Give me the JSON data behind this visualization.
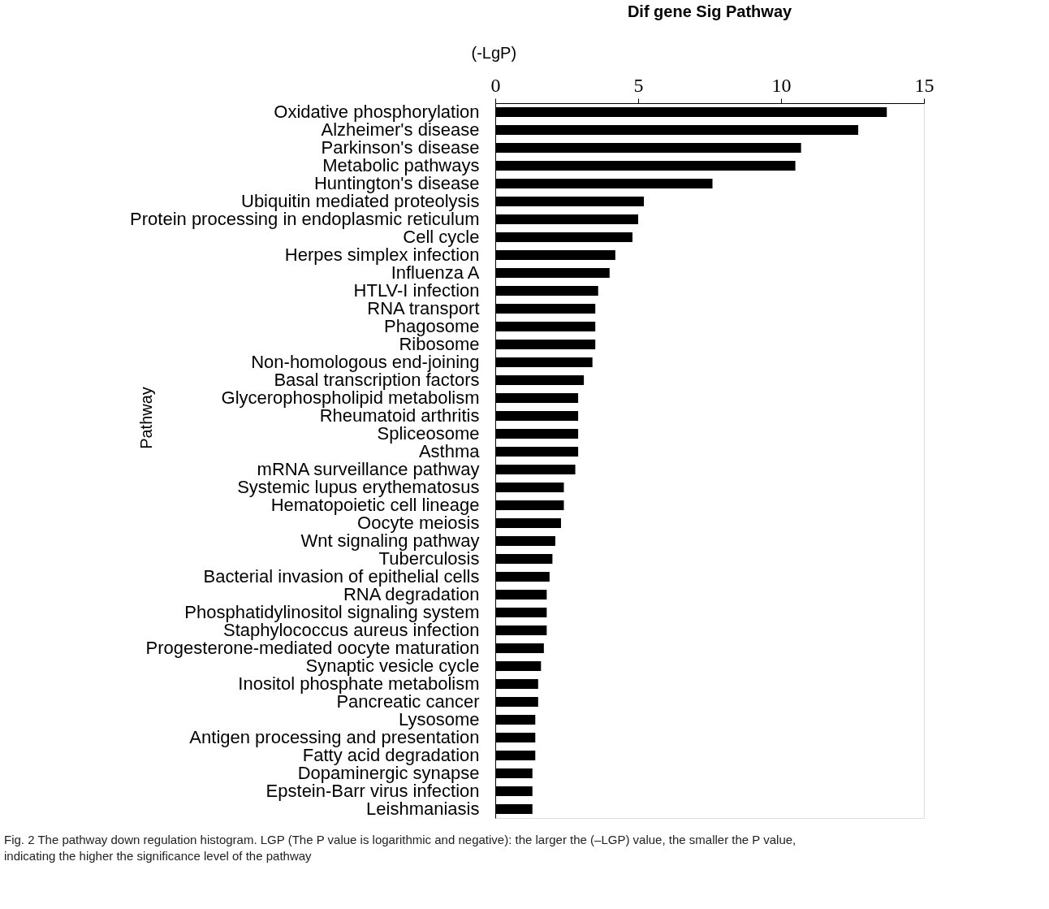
{
  "chart_data": {
    "type": "bar",
    "orientation": "horizontal",
    "title": "Dif gene Sig Pathway",
    "xlabel": "(-LgP)",
    "ylabel": "Pathway",
    "categories": [
      "Oxidative phosphorylation",
      "Alzheimer's disease",
      "Parkinson's disease",
      "Metabolic pathways",
      "Huntington's disease",
      "Ubiquitin mediated proteolysis",
      "Protein processing in endoplasmic reticulum",
      "Cell cycle",
      "Herpes simplex infection",
      "Influenza A",
      "HTLV-I infection",
      "RNA transport",
      "Phagosome",
      "Ribosome",
      "Non-homologous end-joining",
      "Basal transcription factors",
      "Glycerophospholipid metabolism",
      "Rheumatoid arthritis",
      "Spliceosome",
      "Asthma",
      "mRNA surveillance pathway",
      "Systemic lupus erythematosus",
      "Hematopoietic cell lineage",
      "Oocyte meiosis",
      "Wnt signaling pathway",
      "Tuberculosis",
      "Bacterial invasion of epithelial cells",
      "RNA degradation",
      "Phosphatidylinositol signaling system",
      "Staphylococcus aureus infection",
      "Progesterone-mediated oocyte maturation",
      "Synaptic vesicle cycle",
      "Inositol phosphate metabolism",
      "Pancreatic cancer",
      "Lysosome",
      "Antigen processing and presentation",
      "Fatty acid degradation",
      "Dopaminergic synapse",
      "Epstein-Barr virus infection",
      "Leishmaniasis"
    ],
    "values": [
      13.7,
      12.7,
      10.7,
      10.5,
      7.6,
      5.2,
      5.0,
      4.8,
      4.2,
      4.0,
      3.6,
      3.5,
      3.5,
      3.5,
      3.4,
      3.1,
      2.9,
      2.9,
      2.9,
      2.9,
      2.8,
      2.4,
      2.4,
      2.3,
      2.1,
      2.0,
      1.9,
      1.8,
      1.8,
      1.8,
      1.7,
      1.6,
      1.5,
      1.5,
      1.4,
      1.4,
      1.4,
      1.3,
      1.3,
      1.3
    ],
    "color": "#000000",
    "xlim": [
      0,
      15
    ],
    "xticks": [
      0,
      5,
      10,
      15
    ],
    "grid": false,
    "annotations": [
      "Fig. 2  The pathway down regulation histogram. LGP (The P value is logarithmic and negative): the larger the (–LGP) value, the smaller the P value, indicating the higher the significance level of the pathway"
    ]
  }
}
